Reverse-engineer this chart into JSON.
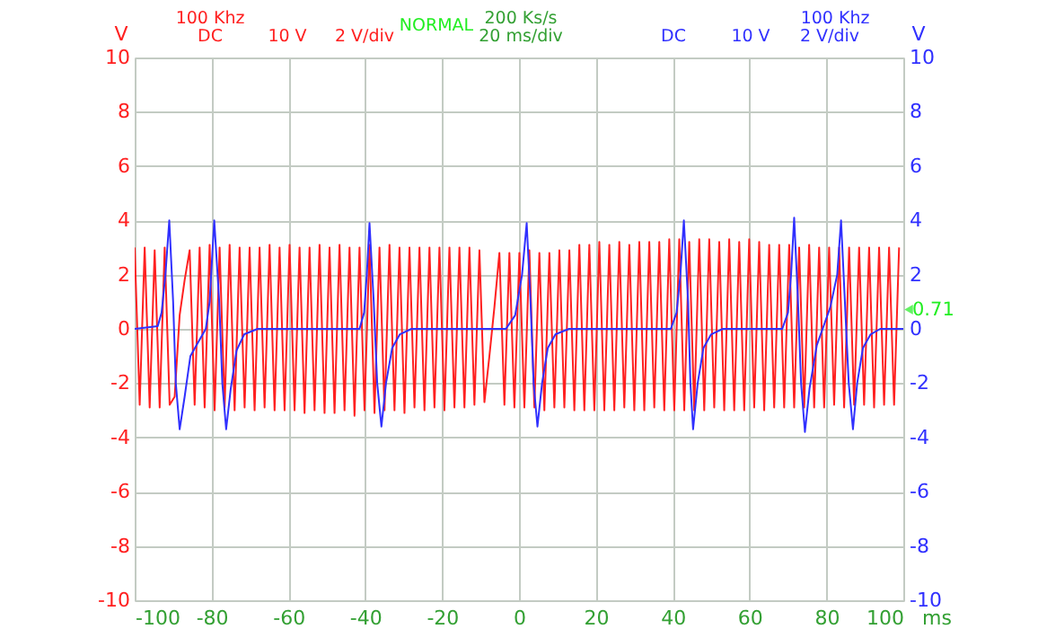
{
  "chart_data": {
    "type": "line",
    "xlabel": "ms",
    "ylabel": "V",
    "y2label": "V",
    "xlim": [
      -100,
      100
    ],
    "xticks": [
      -100,
      -80,
      -60,
      -40,
      -20,
      0,
      20,
      40,
      60,
      80,
      100
    ],
    "ylim": [
      -10,
      10
    ],
    "yticks": [
      -10,
      -8,
      -6,
      -4,
      -2,
      0,
      2,
      4,
      6,
      8,
      10
    ],
    "y2lim": [
      -10,
      10
    ],
    "y2ticks": [
      -10,
      -8,
      -6,
      -4,
      -2,
      0,
      2,
      4,
      6,
      8,
      10
    ],
    "grid": true,
    "line_style": "solid",
    "annotations": [
      "100 Khz",
      "DC",
      "10 V",
      "2 V/div",
      "NORMAL",
      "200 Ks/s",
      "20 ms/div",
      "DC",
      "10 V",
      "2 V/div",
      "100 Khz",
      {
        "text": "0.71",
        "x": 100,
        "y": 0.71
      }
    ],
    "series": [
      {
        "color": "#ff2020",
        "x": [
          -100,
          -98.7,
          -97.4,
          -96.1,
          -94.8,
          -93.5,
          -92.2,
          -90.9,
          -89.6,
          -88.3,
          -87,
          -85.7,
          -84.4,
          -83.1,
          -81.8,
          -80.5,
          -79.2,
          -77.9,
          -76.6,
          -75.3,
          -74,
          -72.7,
          -71.4,
          -70.1,
          -68.8,
          -67.5,
          -66.2,
          -64.9,
          -63.6,
          -62.3,
          -61,
          -59.7,
          -58.4,
          -57.1,
          -55.8,
          -54.5,
          -53.2,
          -51.9,
          -50.6,
          -49.3,
          -48,
          -46.7,
          -45.4,
          -44.1,
          -42.8,
          -41.5,
          -40.2,
          -38.9,
          -37.6,
          -36.3,
          -35,
          -33.7,
          -32.4,
          -31.1,
          -29.8,
          -28.5,
          -27.2,
          -25.9,
          -24.6,
          -23.3,
          -22,
          -20.7,
          -19.4,
          -18.1,
          -16.8,
          -15.5,
          -14.2,
          -12.9,
          -11.6,
          -10.3,
          -9,
          -7.7,
          -6.4,
          -5.1,
          -3.8,
          -2.5,
          -1.2,
          0.1,
          1.4,
          2.7,
          4,
          5.3,
          6.6,
          7.9,
          9.2,
          10.5,
          11.8,
          13.1,
          14.4,
          15.7,
          17,
          18.3,
          19.6,
          20.9,
          22.2,
          23.5,
          24.8,
          26.1,
          27.4,
          28.7,
          30,
          31.3,
          32.6,
          33.9,
          35.2,
          36.5,
          37.8,
          39.1,
          40.4,
          41.7,
          43,
          44.3,
          45.6,
          46.9,
          48.2,
          49.5,
          50.8,
          52.1,
          53.4,
          54.7,
          56,
          57.3,
          58.6,
          59.9,
          61.2,
          62.5,
          63.8,
          65.1,
          66.4,
          67.7,
          69,
          70.3,
          71.6,
          72.9,
          74.2,
          75.5,
          76.8,
          78.1,
          79.4,
          80.7,
          82,
          83.3,
          84.6,
          85.9,
          87.2,
          88.5,
          89.8,
          91.1,
          92.4,
          93.7,
          95,
          96.3,
          97.6,
          98.9
        ],
        "values": [
          3.0,
          -2.8,
          3.0,
          -2.9,
          2.9,
          -2.9,
          3.0,
          -2.8,
          -2.5,
          0.5,
          1.8,
          2.9,
          -2.8,
          3.0,
          -2.9,
          3.1,
          -3.0,
          3.0,
          -2.9,
          3.1,
          -3.0,
          3.0,
          -2.9,
          3.0,
          -3.0,
          3.0,
          -2.9,
          3.1,
          -3.0,
          3.0,
          -3.0,
          3.1,
          -3.0,
          3.0,
          -3.1,
          3.0,
          -3.0,
          3.1,
          -3.1,
          3.0,
          -3.1,
          3.1,
          -3.0,
          3.0,
          -3.2,
          3.0,
          -3.0,
          3.1,
          -3.1,
          3.0,
          -3.0,
          3.1,
          -3.0,
          3.0,
          -3.1,
          3.0,
          -2.9,
          3.0,
          -3.0,
          3.0,
          -2.9,
          3.0,
          -3.0,
          3.0,
          -2.9,
          3.0,
          -2.9,
          3.0,
          -2.8,
          2.9,
          -2.7,
          -1.0,
          0.8,
          2.8,
          -2.8,
          2.8,
          -2.9,
          2.8,
          -2.9,
          2.9,
          -2.9,
          2.8,
          -3.0,
          2.8,
          -2.9,
          2.9,
          -2.9,
          2.9,
          -3.0,
          3.1,
          -3.0,
          3.1,
          -3.0,
          3.2,
          -3.0,
          3.1,
          -3.0,
          3.2,
          -2.9,
          3.1,
          -3.0,
          3.2,
          -3.0,
          3.2,
          -2.9,
          3.2,
          -3.0,
          3.3,
          -3.0,
          3.3,
          -3.0,
          3.2,
          -3.0,
          3.3,
          -3.0,
          3.3,
          -2.9,
          3.2,
          -3.0,
          3.3,
          -3.0,
          3.2,
          -3.0,
          3.3,
          -2.9,
          3.2,
          -3.0,
          3.1,
          -2.9,
          3.1,
          -2.9,
          3.1,
          -2.9,
          3.0,
          -2.9,
          3.1,
          -2.9,
          3.0,
          -2.9,
          3.0,
          -2.8,
          3.0,
          -2.9,
          3.0,
          -2.8,
          3.0,
          -2.8,
          3.0,
          -2.9,
          3.0,
          -2.8,
          3.0,
          -2.8,
          3.0
        ]
      },
      {
        "color": "#3030ff",
        "axis": "y2",
        "x": [
          -100,
          -94,
          -93,
          -92,
          -91,
          -90,
          -89.3,
          -88.3,
          -87,
          -85.5,
          -83.5,
          -81.5,
          -80.5,
          -79.3,
          -78,
          -77.2,
          -76.2,
          -75,
          -73.5,
          -71.5,
          -68,
          -41.5,
          -40.3,
          -39.6,
          -38.9,
          -37.8,
          -36.9,
          -35.8,
          -34.6,
          -33,
          -31,
          -28,
          -3.4,
          -1,
          0.8,
          2,
          3,
          3.8,
          4.8,
          6,
          7.5,
          9.5,
          13,
          39.5,
          41,
          42,
          42.9,
          44,
          44.6,
          45.3,
          46.5,
          48,
          50,
          53,
          68.5,
          70,
          70.8,
          71.6,
          72.6,
          73.4,
          74.4,
          75.6,
          77.5,
          79.5,
          81,
          82.8,
          83.8,
          84.8,
          85.8,
          86.9,
          88,
          89.5,
          91.5,
          94,
          100
        ],
        "values": [
          0,
          0.1,
          0.6,
          2,
          4,
          1,
          -2,
          -3.7,
          -2.5,
          -1,
          -0.5,
          0,
          1,
          4,
          1,
          -2,
          -3.7,
          -2.2,
          -0.8,
          -0.2,
          0,
          0,
          0.6,
          2,
          3.9,
          1,
          -2,
          -3.6,
          -2,
          -0.7,
          -0.2,
          0,
          0,
          0.5,
          2,
          3.9,
          1,
          -2,
          -3.6,
          -2,
          -0.7,
          -0.2,
          0,
          0,
          0.6,
          2,
          4,
          1,
          -2,
          -3.7,
          -2,
          -0.7,
          -0.2,
          0,
          0,
          0.6,
          2,
          4.1,
          1,
          -2,
          -3.8,
          -2.2,
          -0.6,
          0.2,
          0.8,
          2,
          4,
          1,
          -2,
          -3.7,
          -2,
          -0.7,
          -0.2,
          0,
          0
        ]
      }
    ]
  }
}
